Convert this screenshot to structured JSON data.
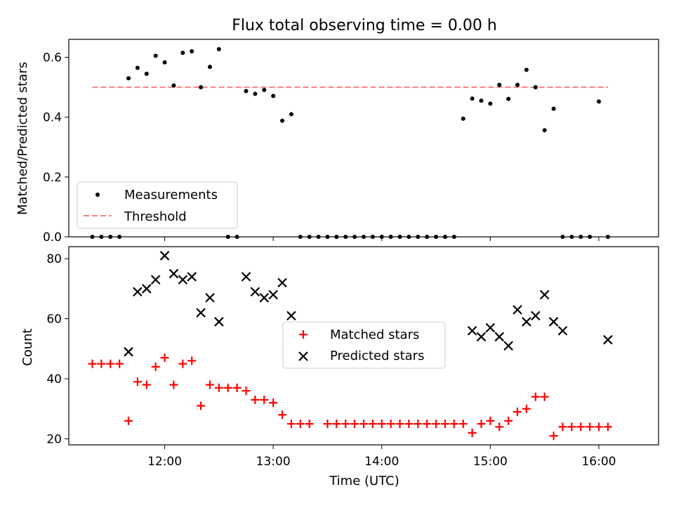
{
  "title": "Flux total observing time = 0.00 h",
  "chart_data": [
    {
      "type": "scatter",
      "ylabel": "Matched/Predicted stars",
      "xlabel": "",
      "ylim": [
        0,
        0.66
      ],
      "yticks": [
        0.0,
        0.2,
        0.4,
        0.6
      ],
      "ytick_labels": [
        "0.0",
        "0.2",
        "0.4",
        "0.6"
      ],
      "legend_position": "lower-left",
      "threshold": {
        "name": "Threshold",
        "value": 0.5,
        "x_range": [
          "11:20",
          "16:05"
        ],
        "color": "#ff7f7f"
      },
      "series": [
        {
          "name": "Measurements",
          "color": "#000000",
          "x": [
            "11:20",
            "11:25",
            "11:30",
            "11:35",
            "11:40",
            "11:45",
            "11:50",
            "11:55",
            "12:00",
            "12:05",
            "12:10",
            "12:15",
            "12:20",
            "12:25",
            "12:30",
            "12:35",
            "12:40",
            "12:45",
            "12:50",
            "12:55",
            "13:00",
            "13:05",
            "13:10",
            "13:15",
            "13:20",
            "13:25",
            "13:30",
            "13:35",
            "13:40",
            "13:45",
            "13:50",
            "13:55",
            "14:00",
            "14:05",
            "14:10",
            "14:15",
            "14:20",
            "14:25",
            "14:30",
            "14:35",
            "14:40",
            "14:45",
            "14:50",
            "14:55",
            "15:00",
            "15:05",
            "15:10",
            "15:15",
            "15:20",
            "15:25",
            "15:30",
            "15:35",
            "15:40",
            "15:45",
            "15:50",
            "15:55",
            "16:00",
            "16:05"
          ],
          "y": [
            0.0,
            0.0,
            0.0,
            0.0,
            0.53,
            0.565,
            0.545,
            0.605,
            0.583,
            0.506,
            0.615,
            0.62,
            0.5,
            0.568,
            0.627,
            0.0,
            0.0,
            0.487,
            0.478,
            0.491,
            0.471,
            0.388,
            0.41,
            0.0,
            0.0,
            0.0,
            0.0,
            0.0,
            0.0,
            0.0,
            0.0,
            0.0,
            0.0,
            0.0,
            0.0,
            0.0,
            0.0,
            0.0,
            0.0,
            0.0,
            0.0,
            0.395,
            0.462,
            0.455,
            0.445,
            0.508,
            0.461,
            0.508,
            0.558,
            0.5,
            0.356,
            0.428,
            0.0,
            0.0,
            0.0,
            0.0,
            0.452,
            0.0
          ],
          "x_hidden_note": ""
        }
      ]
    },
    {
      "type": "scatter",
      "ylabel": "Count",
      "xlabel": "Time (UTC)",
      "ylim": [
        18,
        84
      ],
      "yticks": [
        20,
        40,
        60,
        80
      ],
      "ytick_labels": [
        "20",
        "40",
        "60",
        "80"
      ],
      "xticks": [
        "12:00",
        "13:00",
        "14:00",
        "15:00",
        "16:00"
      ],
      "xlim": [
        "11:07",
        "16:33"
      ],
      "legend_position": "center",
      "series": [
        {
          "name": "Matched stars",
          "marker": "+",
          "color": "#ff0000",
          "x": [
            "11:20",
            "11:25",
            "11:30",
            "11:35",
            "11:40",
            "11:45",
            "11:50",
            "11:55",
            "12:00",
            "12:05",
            "12:10",
            "12:15",
            "12:20",
            "12:25",
            "12:30",
            "12:35",
            "12:40",
            "12:45",
            "12:50",
            "12:55",
            "13:00",
            "13:05",
            "13:10",
            "13:15",
            "13:20",
            "13:30",
            "13:35",
            "13:40",
            "13:45",
            "13:50",
            "13:55",
            "14:00",
            "14:05",
            "14:10",
            "14:15",
            "14:20",
            "14:25",
            "14:30",
            "14:35",
            "14:40",
            "14:45",
            "14:50",
            "14:55",
            "15:00",
            "15:05",
            "15:10",
            "15:15",
            "15:20",
            "15:25",
            "15:30",
            "15:35",
            "15:40",
            "15:45",
            "15:50",
            "15:55",
            "16:00",
            "16:05"
          ],
          "y": [
            45,
            45,
            45,
            45,
            26,
            39,
            38,
            44,
            47,
            38,
            45,
            46,
            31,
            38,
            37,
            37,
            37,
            36,
            33,
            33,
            32,
            28,
            25,
            25,
            25,
            25,
            25,
            25,
            25,
            25,
            25,
            25,
            25,
            25,
            25,
            25,
            25,
            25,
            25,
            25,
            25,
            22,
            25,
            26,
            24,
            26,
            29,
            30,
            34,
            34,
            21,
            24,
            24,
            24,
            24,
            24,
            24
          ]
        },
        {
          "name": "Predicted stars",
          "marker": "x",
          "color": "#000000",
          "x": [
            "11:40",
            "11:45",
            "11:50",
            "11:55",
            "12:00",
            "12:05",
            "12:10",
            "12:15",
            "12:20",
            "12:25",
            "12:30",
            "12:45",
            "12:50",
            "12:55",
            "13:00",
            "13:05",
            "13:10",
            "14:50",
            "14:55",
            "15:00",
            "15:05",
            "15:10",
            "15:15",
            "15:20",
            "15:25",
            "15:30",
            "15:35",
            "15:40",
            "16:05"
          ],
          "y": [
            49,
            69,
            70,
            73,
            81,
            75,
            73,
            74,
            62,
            67,
            59,
            74,
            69,
            67,
            68,
            72,
            61,
            56,
            54,
            57,
            54,
            51,
            63,
            59,
            61,
            68,
            59,
            56,
            53
          ]
        }
      ]
    }
  ]
}
